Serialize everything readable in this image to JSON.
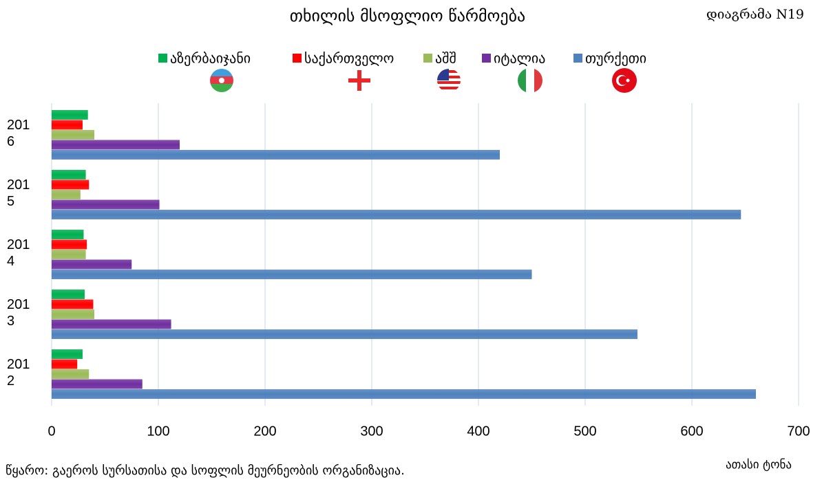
{
  "chart_data": {
    "type": "hbar",
    "title": "თხილის მსოფლიო წარმოება",
    "subtitle": "დიაგრამა N19",
    "source": "წყარო: გაეროს სურსათისა და სოფლის მეურნეობის ორგანიზაცია.",
    "x_label": "ათასი ტონა",
    "categories": [
      "2016",
      "2015",
      "2014",
      "2013",
      "2012"
    ],
    "series": [
      {
        "name": "აზერბაიჯანი",
        "color": "#00b050",
        "values": [
          34,
          32,
          30,
          31,
          29
        ]
      },
      {
        "name": "საქართველო",
        "color": "#ff0000",
        "values": [
          29,
          35,
          33,
          39,
          24
        ]
      },
      {
        "name": "აშშ",
        "color": "#9bbb59",
        "values": [
          40,
          27,
          32,
          40,
          35
        ]
      },
      {
        "name": "იტალია",
        "color": "#7030a0",
        "values": [
          120,
          101,
          75,
          112,
          85
        ]
      },
      {
        "name": "თურქეთი",
        "color": "#4f81bd",
        "values": [
          420,
          646,
          450,
          549,
          660
        ]
      }
    ],
    "xlim": [
      0,
      700
    ],
    "xticks": [
      0,
      100,
      200,
      300,
      400,
      500,
      600,
      700
    ],
    "grid": true
  }
}
